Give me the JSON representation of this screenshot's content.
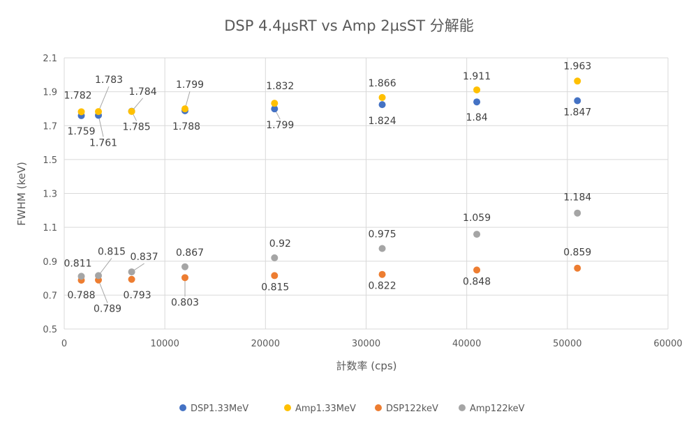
{
  "chart_data": {
    "type": "scatter",
    "title": "DSP 4.4µsRT vs Amp 2µsST 分解能",
    "xlabel": "計数率 (cps)",
    "ylabel": "FWHM (keV)",
    "xlim": [
      0,
      60000
    ],
    "ylim": [
      0.5,
      2.1
    ],
    "x_ticks": [
      "0",
      "10000",
      "20000",
      "30000",
      "40000",
      "50000",
      "60000"
    ],
    "y_ticks": [
      "0.5",
      "0.7",
      "0.9",
      "1.1",
      "1.3",
      "1.5",
      "1.7",
      "1.9",
      "2.1"
    ],
    "grid": true,
    "legend_position": "bottom",
    "series": [
      {
        "name": "DSP1.33MeV",
        "color": "#4472C4",
        "points": [
          {
            "x": 1700,
            "y": 1.759,
            "label": "1.759"
          },
          {
            "x": 3400,
            "y": 1.761,
            "label": "1.761"
          },
          {
            "x": 6700,
            "y": 1.785,
            "label": "1.785"
          },
          {
            "x": 12000,
            "y": 1.788,
            "label": "1.788"
          },
          {
            "x": 20900,
            "y": 1.799,
            "label": "1.799"
          },
          {
            "x": 31600,
            "y": 1.824,
            "label": "1.824"
          },
          {
            "x": 41000,
            "y": 1.84,
            "label": "1.84"
          },
          {
            "x": 51000,
            "y": 1.847,
            "label": "1.847"
          }
        ]
      },
      {
        "name": "Amp1.33MeV",
        "color": "#FFC000",
        "points": [
          {
            "x": 1700,
            "y": 1.782,
            "label": "1.782"
          },
          {
            "x": 3400,
            "y": 1.783,
            "label": "1.783"
          },
          {
            "x": 6700,
            "y": 1.784,
            "label": "1.784"
          },
          {
            "x": 12000,
            "y": 1.799,
            "label": "1.799"
          },
          {
            "x": 20900,
            "y": 1.832,
            "label": "1.832"
          },
          {
            "x": 31600,
            "y": 1.866,
            "label": "1.866"
          },
          {
            "x": 41000,
            "y": 1.911,
            "label": "1.911"
          },
          {
            "x": 51000,
            "y": 1.963,
            "label": "1.963"
          }
        ]
      },
      {
        "name": "DSP122keV",
        "color": "#ED7D31",
        "points": [
          {
            "x": 1700,
            "y": 0.788,
            "label": "0.788"
          },
          {
            "x": 3400,
            "y": 0.789,
            "label": "0.789"
          },
          {
            "x": 6700,
            "y": 0.793,
            "label": "0.793"
          },
          {
            "x": 12000,
            "y": 0.803,
            "label": "0.803"
          },
          {
            "x": 20900,
            "y": 0.815,
            "label": "0.815"
          },
          {
            "x": 31600,
            "y": 0.822,
            "label": "0.822"
          },
          {
            "x": 41000,
            "y": 0.848,
            "label": "0.848"
          },
          {
            "x": 51000,
            "y": 0.859,
            "label": "0.859"
          }
        ]
      },
      {
        "name": "Amp122keV",
        "color": "#A5A5A5",
        "points": [
          {
            "x": 1700,
            "y": 0.811,
            "label": "0.811"
          },
          {
            "x": 3400,
            "y": 0.815,
            "label": "0.815"
          },
          {
            "x": 6700,
            "y": 0.837,
            "label": "0.837"
          },
          {
            "x": 12000,
            "y": 0.867,
            "label": "0.867"
          },
          {
            "x": 20900,
            "y": 0.92,
            "label": "0.92"
          },
          {
            "x": 31600,
            "y": 0.975,
            "label": "0.975"
          },
          {
            "x": 41000,
            "y": 1.059,
            "label": "1.059"
          },
          {
            "x": 51000,
            "y": 1.184,
            "label": "1.184"
          }
        ]
      }
    ]
  }
}
